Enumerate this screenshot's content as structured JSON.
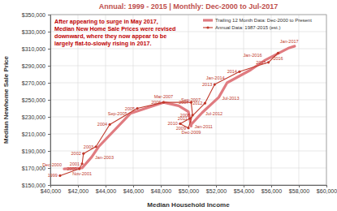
{
  "chart_data": {
    "type": "line",
    "title": "Annual: 1999 - 2015 | Monthly: Dec-2000 to Jul-2017",
    "x_label": "Median Household Income",
    "y_label": "Median Newhome Sale Price",
    "xlim": [
      40000,
      60000
    ],
    "xticks": [
      {
        "value": 40000,
        "label": "$40,000"
      },
      {
        "value": 42000,
        "label": "$42,000"
      },
      {
        "value": 44000,
        "label": "$44,000"
      },
      {
        "value": 46000,
        "label": "$46,000"
      },
      {
        "value": 48000,
        "label": "$48,000"
      },
      {
        "value": 50000,
        "label": "$50,000"
      },
      {
        "value": 52000,
        "label": "$52,000"
      },
      {
        "value": 54000,
        "label": "$54,000"
      },
      {
        "value": 56000,
        "label": "$56,000"
      },
      {
        "value": 58000,
        "label": "$58,000"
      },
      {
        "value": 60000,
        "label": "$60,000"
      }
    ],
    "ylim": [
      150000,
      350000
    ],
    "yticks": [
      {
        "value": 150000,
        "label": "$150,000"
      },
      {
        "value": 170000,
        "label": "$170,000"
      },
      {
        "value": 190000,
        "label": "$190,000"
      },
      {
        "value": 210000,
        "label": "$210,000"
      },
      {
        "value": 230000,
        "label": "$230,000"
      },
      {
        "value": 250000,
        "label": "$250,000"
      },
      {
        "value": 270000,
        "label": "$270,000"
      },
      {
        "value": 290000,
        "label": "$290,000"
      },
      {
        "value": 310000,
        "label": "$310,000"
      },
      {
        "value": 330000,
        "label": "$330,000"
      },
      {
        "value": 350000,
        "label": "$350,000"
      }
    ],
    "grid": true,
    "legend": "upper right",
    "annotations": [
      "After appearing to surge in May 2017,",
      "Median New Home Sale Prices were revised",
      "downward, where they now appear to be",
      "largely flat-to-slowly rising in 2017."
    ],
    "series": [
      {
        "name": "Trailing 12 Month Data: Dec-2000 to Present",
        "color": "#e07b80",
        "line_style": "solid",
        "x": [
          41000,
          42300,
          43000,
          43500,
          45800,
          48200,
          49300,
          50000,
          50200,
          50200,
          51000,
          52200,
          52800,
          54500,
          55500,
          57300,
          57700
        ],
        "values": [
          169000,
          170000,
          183000,
          195000,
          234000,
          247000,
          243000,
          236000,
          219000,
          221000,
          235000,
          253000,
          270000,
          285000,
          296000,
          311000,
          313000
        ],
        "point_labels": [
          "Dec-2000",
          "Nov-2001",
          "Jan-2003",
          null,
          "Sep-2005",
          "Mar-2007",
          "Sep-2007",
          null,
          "Dec-2009",
          "Jan-2011",
          "Jul-2012",
          "Jul-2013",
          "Jan-2014",
          null,
          "Jan-2016",
          "Jan-2017",
          null
        ]
      },
      {
        "name": "Annual Data: 1987-2015 (est.)",
        "color": "#c0392b",
        "line_style": "solid",
        "marker": "circle",
        "x": [
          40700,
          42100,
          42300,
          42400,
          43300,
          44300,
          46300,
          48200,
          50200,
          50300,
          50000,
          49400,
          50100,
          51200,
          51900,
          53700,
          55800,
          56500
        ],
        "values": [
          161000,
          169000,
          175000,
          187000,
          195000,
          221000,
          240000,
          247000,
          247000,
          232000,
          217000,
          222000,
          228000,
          246000,
          268000,
          283000,
          294000,
          305000
        ],
        "point_labels": [
          "1999",
          "2000",
          "2001",
          "2002",
          "2003",
          "2004",
          "2005",
          "2006",
          "2007",
          "2008",
          "2009",
          "2010",
          "2011",
          "2012",
          "2013",
          "2014",
          "2015",
          "2016"
        ]
      }
    ]
  }
}
